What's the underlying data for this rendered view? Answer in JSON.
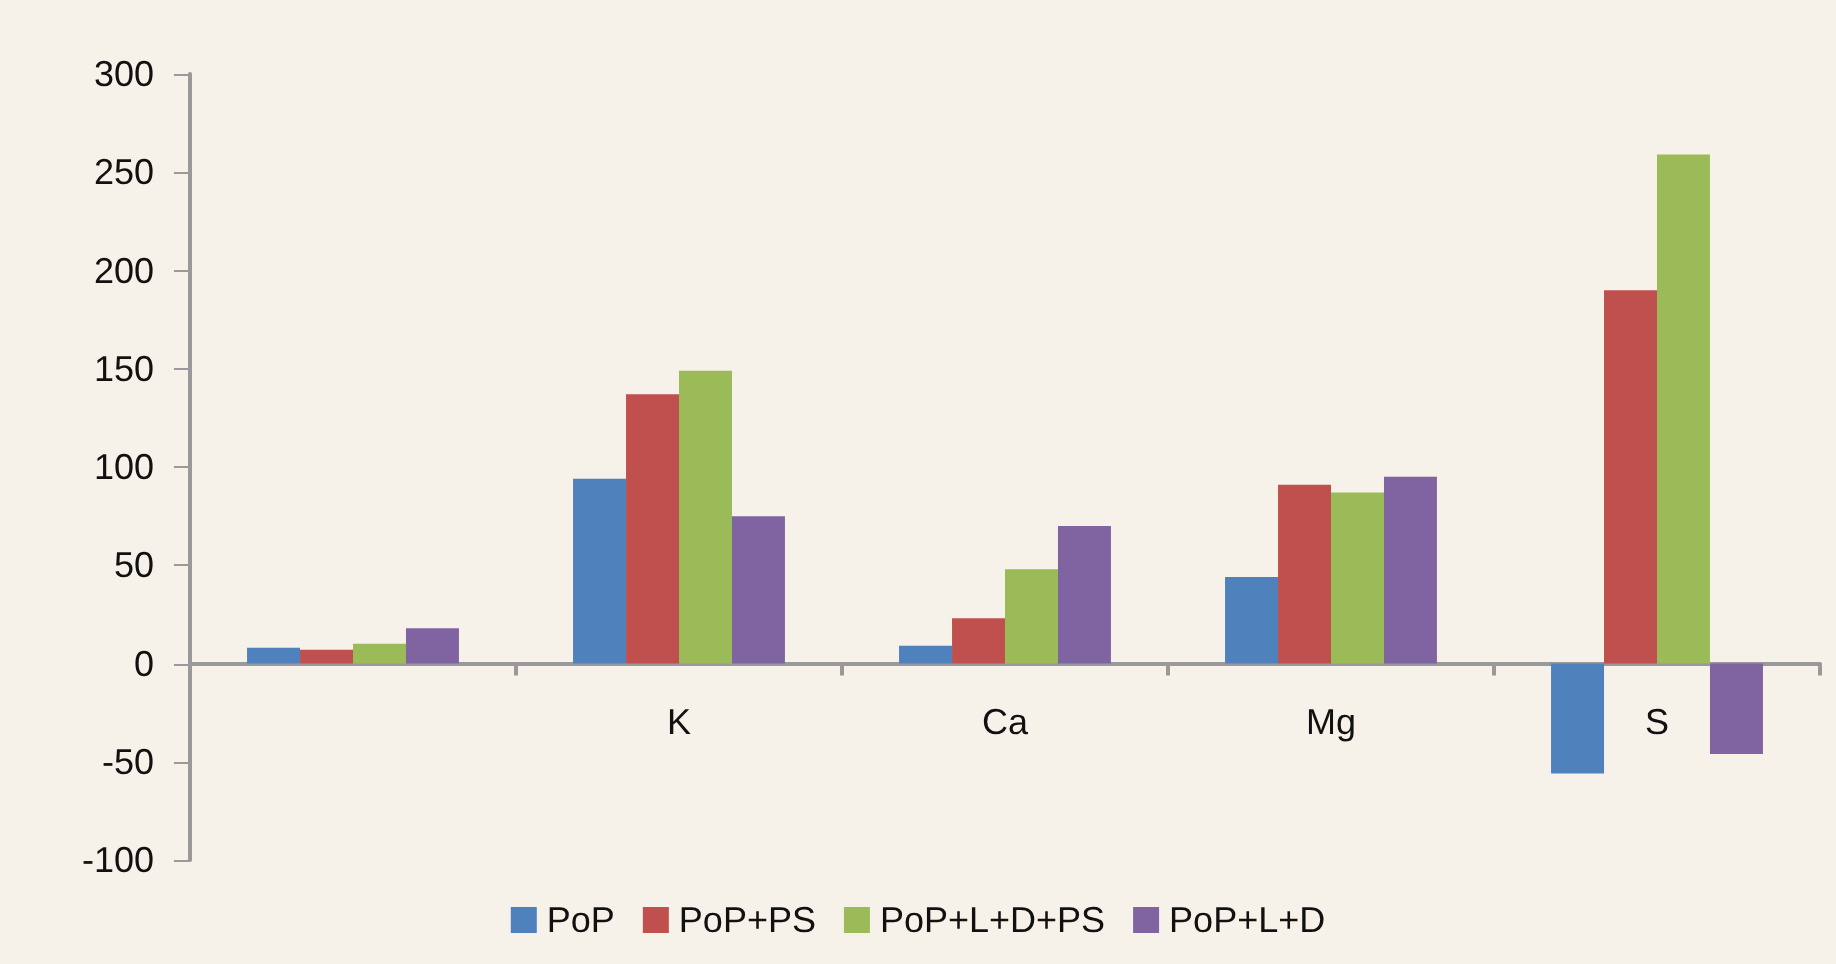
{
  "chart_data": {
    "type": "bar",
    "categories": [
      null,
      "K",
      "Ca",
      "Mg",
      "S"
    ],
    "series": [
      {
        "name": "PoP",
        "color": "#4f81bd",
        "values": [
          8,
          94,
          9,
          44,
          -56
        ]
      },
      {
        "name": "PoP+PS",
        "color": "#c0504d",
        "values": [
          7,
          137,
          23,
          91,
          190
        ]
      },
      {
        "name": "PoP+L+D+PS",
        "color": "#9bbb59",
        "values": [
          10,
          149,
          48,
          87,
          259
        ]
      },
      {
        "name": "PoP+L+D",
        "color": "#8064a2",
        "values": [
          18,
          75,
          70,
          95,
          -46
        ]
      }
    ],
    "ylim": [
      -100,
      300
    ],
    "yticks": [
      -100,
      -50,
      0,
      50,
      100,
      150,
      200,
      250,
      300
    ],
    "grid": false,
    "legend": "bottom"
  }
}
